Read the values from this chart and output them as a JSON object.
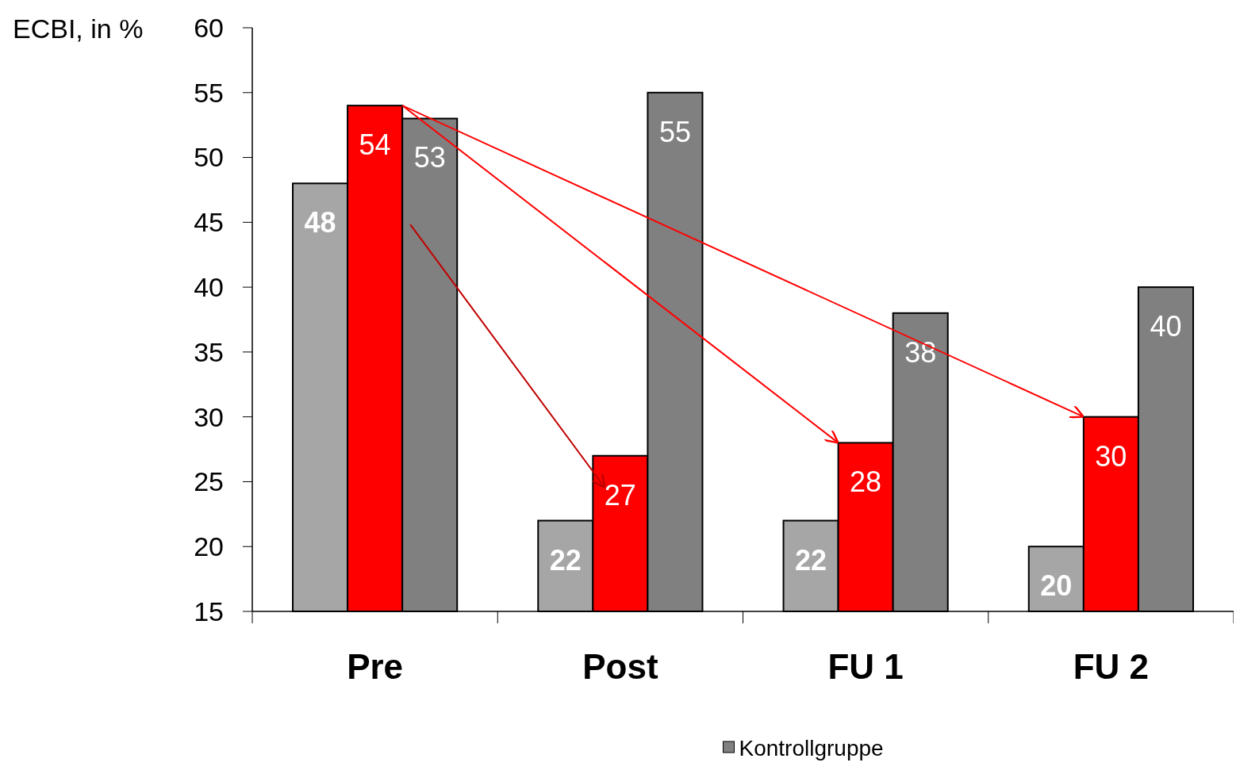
{
  "chart_data": {
    "type": "bar",
    "ylabel": "ECBI, in %",
    "categories": [
      "Pre",
      "Post",
      "FU 1",
      "FU 2"
    ],
    "series": [
      {
        "color": "#a6a6a6",
        "values": [
          48,
          22,
          22,
          20
        ]
      },
      {
        "color": "#ff0000",
        "values": [
          54,
          27,
          28,
          30
        ]
      },
      {
        "name": "Kontrollgruppe",
        "color": "#808080",
        "values": [
          53,
          55,
          38,
          40
        ]
      }
    ],
    "ylim": [
      15,
      60
    ],
    "yticks": [
      15,
      20,
      25,
      30,
      35,
      40,
      45,
      50,
      55,
      60
    ],
    "legend": "bottom",
    "data_labels": true
  }
}
